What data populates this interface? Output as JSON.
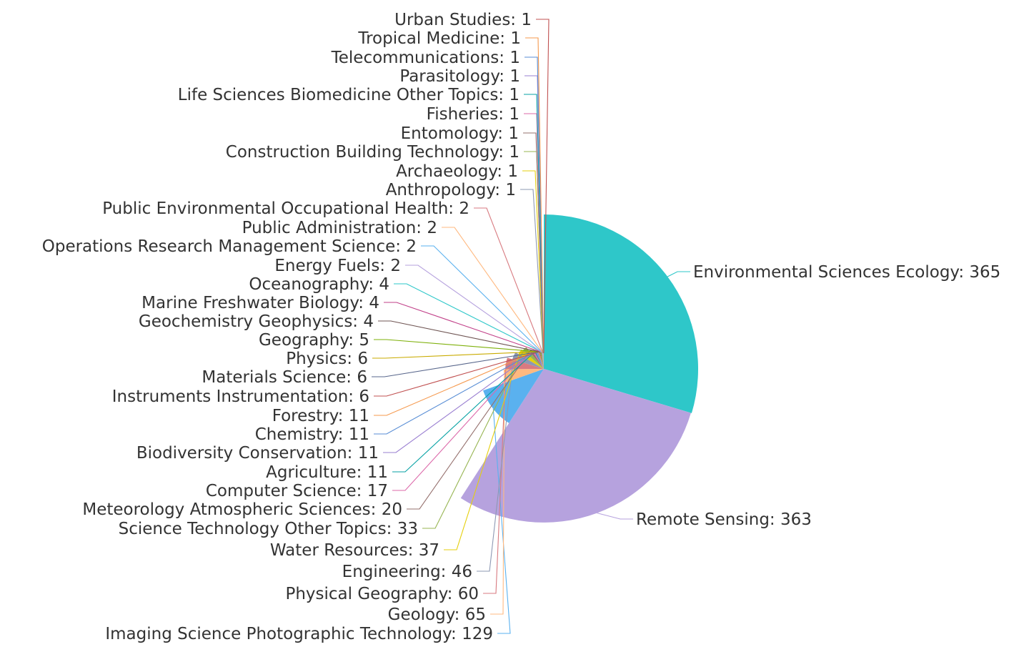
{
  "chart_data": {
    "type": "pie",
    "variant": "rose",
    "title": "",
    "legend": "none",
    "slices": [
      {
        "name": "Environmental Sciences Ecology",
        "value": 365,
        "color": "#2ec7c9"
      },
      {
        "name": "Remote Sensing",
        "value": 363,
        "color": "#b6a2de"
      },
      {
        "name": "Imaging Science Photographic Technology",
        "value": 129,
        "color": "#5ab1ef"
      },
      {
        "name": "Geology",
        "value": 65,
        "color": "#ffb980"
      },
      {
        "name": "Physical Geography",
        "value": 60,
        "color": "#d87a80"
      },
      {
        "name": "Engineering",
        "value": 46,
        "color": "#8d98b3"
      },
      {
        "name": "Water Resources",
        "value": 37,
        "color": "#e5cf0d"
      },
      {
        "name": "Science Technology Other Topics",
        "value": 33,
        "color": "#97b552"
      },
      {
        "name": "Meteorology Atmospheric Sciences",
        "value": 20,
        "color": "#95706d"
      },
      {
        "name": "Computer Science",
        "value": 17,
        "color": "#dc69aa"
      },
      {
        "name": "Agriculture",
        "value": 11,
        "color": "#07a2a4"
      },
      {
        "name": "Biodiversity Conservation",
        "value": 11,
        "color": "#9a7fd1"
      },
      {
        "name": "Chemistry",
        "value": 11,
        "color": "#588dd5"
      },
      {
        "name": "Forestry",
        "value": 11,
        "color": "#f5994e"
      },
      {
        "name": "Instruments Instrumentation",
        "value": 6,
        "color": "#c05050"
      },
      {
        "name": "Materials Science",
        "value": 6,
        "color": "#59678c"
      },
      {
        "name": "Physics",
        "value": 6,
        "color": "#c9ab00"
      },
      {
        "name": "Geography",
        "value": 5,
        "color": "#7eb00a"
      },
      {
        "name": "Geochemistry Geophysics",
        "value": 4,
        "color": "#6f5553"
      },
      {
        "name": "Marine Freshwater Biology",
        "value": 4,
        "color": "#c14089"
      },
      {
        "name": "Oceanography",
        "value": 4,
        "color": "#2ec7c9"
      },
      {
        "name": "Energy Fuels",
        "value": 2,
        "color": "#b6a2de"
      },
      {
        "name": "Operations Research Management Science",
        "value": 2,
        "color": "#5ab1ef"
      },
      {
        "name": "Public Administration",
        "value": 2,
        "color": "#ffb980"
      },
      {
        "name": "Public Environmental Occupational Health",
        "value": 2,
        "color": "#d87a80"
      },
      {
        "name": "Anthropology",
        "value": 1,
        "color": "#8d98b3"
      },
      {
        "name": "Archaeology",
        "value": 1,
        "color": "#e5cf0d"
      },
      {
        "name": "Construction Building Technology",
        "value": 1,
        "color": "#97b552"
      },
      {
        "name": "Entomology",
        "value": 1,
        "color": "#95706d"
      },
      {
        "name": "Fisheries",
        "value": 1,
        "color": "#dc69aa"
      },
      {
        "name": "Life Sciences Biomedicine Other Topics",
        "value": 1,
        "color": "#07a2a4"
      },
      {
        "name": "Parasitology",
        "value": 1,
        "color": "#9a7fd1"
      },
      {
        "name": "Telecommunications",
        "value": 1,
        "color": "#588dd5"
      },
      {
        "name": "Tropical Medicine",
        "value": 1,
        "color": "#f5994e"
      },
      {
        "name": "Urban Studies",
        "value": 1,
        "color": "#c05050"
      }
    ]
  }
}
